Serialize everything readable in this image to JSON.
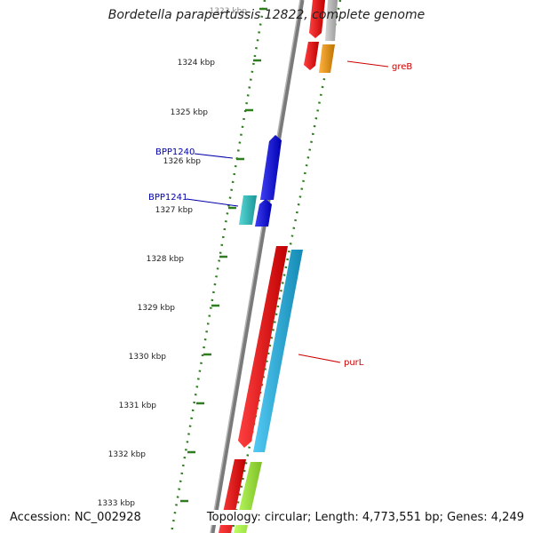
{
  "title": "Bordetella parapertussis 12822, complete genome",
  "accession": "Accession: NC_002928",
  "summary": "Topology: circular; Length: 4,773,551 bp; Genes: 4,249",
  "ticks": [
    {
      "label": "1323 kbp",
      "faint": true
    },
    {
      "label": "1324 kbp"
    },
    {
      "label": "1325 kbp"
    },
    {
      "label": "1326 kbp"
    },
    {
      "label": "1327 kbp"
    },
    {
      "label": "1328 kbp"
    },
    {
      "label": "1329 kbp"
    },
    {
      "label": "1330 kbp"
    },
    {
      "label": "1331 kbp"
    },
    {
      "label": "1332 kbp"
    },
    {
      "label": "1333 kbp"
    }
  ],
  "gene_labels": [
    {
      "name": "greB",
      "color": "#cc0000"
    },
    {
      "name": "BPP1240",
      "color": "#0000aa"
    },
    {
      "name": "BPP1241",
      "color": "#0000aa"
    },
    {
      "name": "purL",
      "color": "#cc0000"
    }
  ],
  "colors": {
    "backbone": "#7a7a7a",
    "tick": "#2e7d1e",
    "red": "#ff0000",
    "orange": "#ff9900",
    "gray": "#c8c8c8",
    "blue": "#0000ee",
    "teal": "#22c8c8",
    "sky": "#1ab8f0",
    "lime": "#aaff33"
  }
}
